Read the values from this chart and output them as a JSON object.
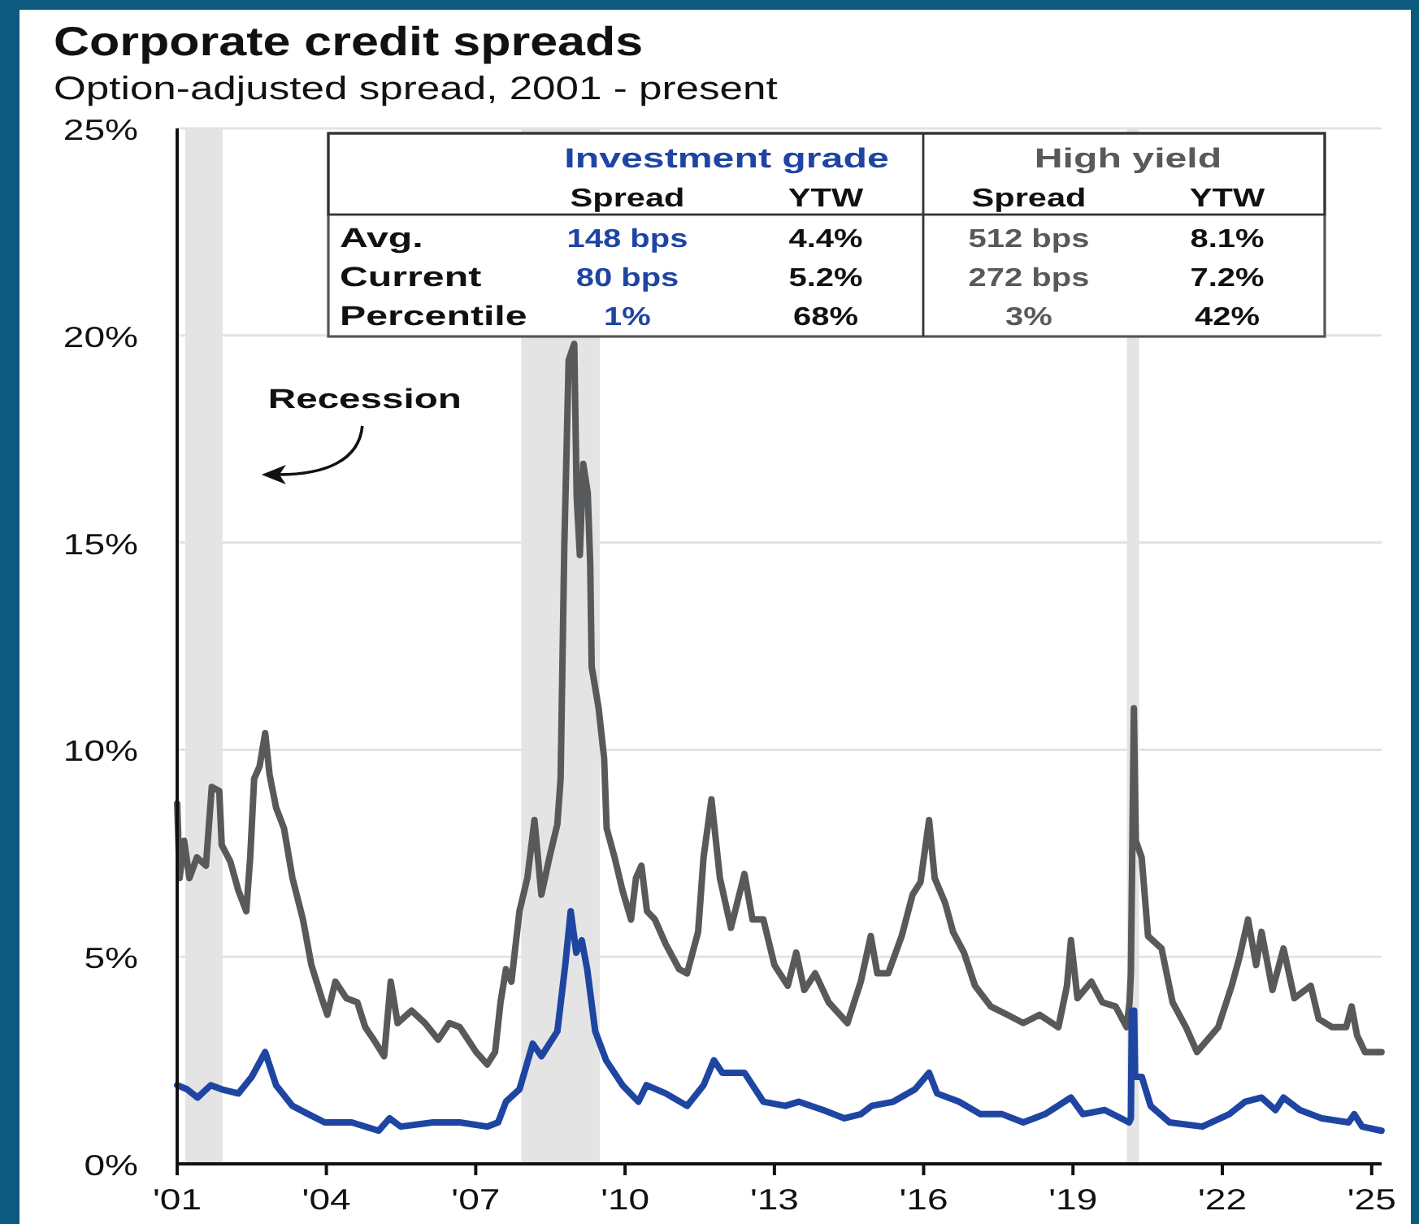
{
  "chart_data": {
    "type": "line",
    "title": "Corporate credit spreads",
    "subtitle": "Option-adjusted spread, 2001 - present",
    "xlim": [
      "2001-01-01",
      "2025-03-15"
    ],
    "xticks": [
      {
        "value": "2001-01-01",
        "label": "'01"
      },
      {
        "value": "2004-01-01",
        "label": "'04"
      },
      {
        "value": "2007-01-01",
        "label": "'07"
      },
      {
        "value": "2010-01-01",
        "label": "'10"
      },
      {
        "value": "2013-01-01",
        "label": "'13"
      },
      {
        "value": "2016-01-01",
        "label": "'16"
      },
      {
        "value": "2019-01-01",
        "label": "'19"
      },
      {
        "value": "2022-01-01",
        "label": "'22"
      },
      {
        "value": "2025-01-01",
        "label": "'25"
      }
    ],
    "ylim": [
      0,
      25
    ],
    "yticks": [
      {
        "value": 0,
        "label": "0%"
      },
      {
        "value": 5,
        "label": "5%"
      },
      {
        "value": 10,
        "label": "10%"
      },
      {
        "value": 15,
        "label": "15%"
      },
      {
        "value": 20,
        "label": "20%"
      },
      {
        "value": 25,
        "label": "25%"
      }
    ],
    "grid": "y",
    "series": [
      {
        "name": "Investment grade",
        "color": "#1f45a3",
        "x": [
          "2001-01-01",
          "2001-03-15",
          "2001-05-30",
          "2001-09-05",
          "2001-11-24",
          "2002-03-26",
          "2002-07-02",
          "2002-10-09",
          "2002-12-28",
          "2003-04-27",
          "2003-08-22",
          "2003-12-20",
          "2004-07-05",
          "2005-01-19",
          "2005-04-09",
          "2005-06-29",
          "2006-02-21",
          "2006-09-06",
          "2007-03-26",
          "2007-06-14",
          "2007-08-11",
          "2007-11-18",
          "2008-02-24",
          "2008-04-27",
          "2008-08-22",
          "2008-10-19",
          "2008-11-28",
          "2009-01-08",
          "2009-02-17",
          "2009-03-29",
          "2009-05-27",
          "2009-08-15",
          "2009-12-13",
          "2010-04-09",
          "2010-06-07",
          "2010-10-27",
          "2011-04-01",
          "2011-07-31",
          "2011-10-15",
          "2011-12-16",
          "2012-05-26",
          "2012-10-12",
          "2013-03-22",
          "2013-06-28",
          "2013-12-24",
          "2014-05-30",
          "2014-09-27",
          "2014-12-16",
          "2015-05-23",
          "2015-10-30",
          "2016-02-10",
          "2016-04-09",
          "2016-09-17",
          "2017-02-21",
          "2017-07-31",
          "2018-01-01",
          "2018-06-10",
          "2018-12-17",
          "2019-03-15",
          "2019-08-22",
          "2020-02-17",
          "2020-03-01",
          "2020-03-08",
          "2020-03-25",
          "2020-04-01",
          "2020-05-20",
          "2020-07-24",
          "2020-12-10",
          "2021-08-07",
          "2022-02-21",
          "2022-06-17",
          "2022-10-16",
          "2023-01-26",
          "2023-03-26",
          "2023-07-24",
          "2024-01-01",
          "2024-07-16",
          "2024-08-26",
          "2024-10-23",
          "2025-03-14"
        ],
        "values": [
          1.9,
          1.8,
          1.6,
          1.9,
          1.8,
          1.7,
          2.1,
          2.7,
          1.9,
          1.4,
          1.2,
          1.0,
          1.0,
          0.8,
          1.1,
          0.9,
          1.0,
          1.0,
          0.9,
          1.0,
          1.5,
          1.8,
          2.9,
          2.6,
          3.2,
          4.8,
          6.1,
          5.1,
          5.4,
          4.7,
          3.2,
          2.5,
          1.9,
          1.5,
          1.9,
          1.7,
          1.4,
          1.9,
          2.5,
          2.2,
          2.2,
          1.5,
          1.4,
          1.5,
          1.3,
          1.1,
          1.2,
          1.4,
          1.5,
          1.8,
          2.2,
          1.7,
          1.5,
          1.2,
          1.2,
          1.0,
          1.2,
          1.6,
          1.2,
          1.3,
          1.0,
          1.1,
          3.7,
          3.7,
          2.1,
          2.1,
          1.4,
          1.0,
          0.9,
          1.2,
          1.5,
          1.6,
          1.3,
          1.6,
          1.3,
          1.1,
          1.0,
          1.2,
          0.9,
          0.8
        ]
      },
      {
        "name": "High yield",
        "color": "#58595b",
        "x": [
          "2001-01-01",
          "2001-01-19",
          "2001-02-21",
          "2001-04-01",
          "2001-05-26",
          "2001-07-31",
          "2001-09-12",
          "2001-11-06",
          "2001-11-24",
          "2002-01-26",
          "2002-03-26",
          "2002-05-23",
          "2002-06-21",
          "2002-07-20",
          "2002-08-29",
          "2002-10-09",
          "2002-11-10",
          "2002-12-28",
          "2003-02-24",
          "2003-04-27",
          "2003-07-13",
          "2003-09-13",
          "2003-11-28",
          "2004-01-08",
          "2004-03-07",
          "2004-05-27",
          "2004-08-15",
          "2004-10-12",
          "2004-12-13",
          "2005-02-28",
          "2005-04-17",
          "2005-06-07",
          "2005-09-17",
          "2005-12-24",
          "2006-04-01",
          "2006-06-21",
          "2006-09-06",
          "2007-01-04",
          "2007-03-26",
          "2007-05-23",
          "2007-07-02",
          "2007-08-11",
          "2007-09-20",
          "2007-11-18",
          "2008-01-15",
          "2008-03-07",
          "2008-04-27",
          "2008-06-25",
          "2008-08-22",
          "2008-09-15",
          "2008-10-12",
          "2008-11-13",
          "2008-12-24",
          "2009-01-11",
          "2009-02-03",
          "2009-02-28",
          "2009-04-02",
          "2009-04-20",
          "2009-05-01",
          "2009-06-21",
          "2009-07-31",
          "2009-08-19",
          "2009-10-16",
          "2009-12-13",
          "2010-02-14",
          "2010-03-22",
          "2010-05-01",
          "2010-06-11",
          "2010-08-08",
          "2010-10-27",
          "2011-02-02",
          "2011-04-01",
          "2011-06-21",
          "2011-07-31",
          "2011-09-27",
          "2011-11-28",
          "2012-02-17",
          "2012-05-26",
          "2012-07-24",
          "2012-10-12",
          "2013-01-01",
          "2013-04-09",
          "2013-06-10",
          "2013-08-08",
          "2013-10-27",
          "2014-02-03",
          "2014-06-21",
          "2014-09-27",
          "2014-12-09",
          "2015-01-26",
          "2015-04-16",
          "2015-07-24",
          "2015-10-12",
          "2015-12-09",
          "2016-02-10",
          "2016-03-22",
          "2016-06-07",
          "2016-08-04",
          "2016-10-23",
          "2017-01-12",
          "2017-05-08",
          "2017-09-06",
          "2018-01-01",
          "2018-05-01",
          "2018-09-16",
          "2018-11-18",
          "2018-12-17",
          "2019-02-03",
          "2019-05-16",
          "2019-08-04",
          "2019-11-10",
          "2020-01-30",
          "2020-02-20",
          "2020-03-01",
          "2020-03-23",
          "2020-04-06",
          "2020-05-19",
          "2020-07-05",
          "2020-10-12",
          "2021-01-01",
          "2021-04-09",
          "2021-06-29",
          "2021-12-02",
          "2022-03-11",
          "2022-05-08",
          "2022-07-09",
          "2022-09-06",
          "2022-10-16",
          "2023-01-04",
          "2023-03-26",
          "2023-06-14",
          "2023-10-12",
          "2023-12-09",
          "2024-03-17",
          "2024-06-28",
          "2024-08-07",
          "2024-09-16",
          "2024-11-13",
          "2025-03-14"
        ],
        "values": [
          8.7,
          6.9,
          7.8,
          6.9,
          7.4,
          7.2,
          9.1,
          9.0,
          7.7,
          7.3,
          6.6,
          6.1,
          7.4,
          9.3,
          9.6,
          10.4,
          9.4,
          8.6,
          8.1,
          6.9,
          5.9,
          4.8,
          4.0,
          3.6,
          4.4,
          4.0,
          3.9,
          3.3,
          3.0,
          2.6,
          4.4,
          3.4,
          3.7,
          3.4,
          3.0,
          3.4,
          3.3,
          2.7,
          2.4,
          2.7,
          3.9,
          4.7,
          4.4,
          6.1,
          6.9,
          8.3,
          6.5,
          7.4,
          8.2,
          9.3,
          14.9,
          19.4,
          19.8,
          16.1,
          14.7,
          16.9,
          16.2,
          14.5,
          12.0,
          11.0,
          9.8,
          8.1,
          7.4,
          6.6,
          5.9,
          6.9,
          7.2,
          6.1,
          5.9,
          5.3,
          4.7,
          4.6,
          5.6,
          7.4,
          8.8,
          6.9,
          5.7,
          7.0,
          5.9,
          5.9,
          4.8,
          4.3,
          5.1,
          4.2,
          4.6,
          3.9,
          3.4,
          4.4,
          5.5,
          4.6,
          4.6,
          5.5,
          6.5,
          6.8,
          8.3,
          6.9,
          6.3,
          5.6,
          5.1,
          4.3,
          3.8,
          3.6,
          3.4,
          3.6,
          3.3,
          4.3,
          5.4,
          4.0,
          4.4,
          3.9,
          3.8,
          3.3,
          3.9,
          4.6,
          11.0,
          7.8,
          7.4,
          5.5,
          5.2,
          3.9,
          3.3,
          2.7,
          3.3,
          4.3,
          5.0,
          5.9,
          4.8,
          5.6,
          4.2,
          5.2,
          4.0,
          4.3,
          3.5,
          3.3,
          3.3,
          3.8,
          3.1,
          2.7,
          2.7
        ]
      }
    ],
    "bands": [
      {
        "axis": "x",
        "from": "2001-03-01",
        "to": "2001-11-30",
        "label": "Recession",
        "color": "#e4e4e4"
      },
      {
        "axis": "x",
        "from": "2007-12-01",
        "to": "2009-06-30",
        "color": "#e4e4e4"
      },
      {
        "axis": "x",
        "from": "2020-02-01",
        "to": "2020-04-30",
        "color": "#e4e4e4"
      }
    ],
    "annotations": [
      "Spread",
      "YTW",
      "Spread",
      "YTW",
      "Avg.",
      "148 bps",
      "4.4%",
      "512 bps",
      "8.1%",
      "Current",
      "80 bps",
      "5.2%",
      "272 bps",
      "7.2%",
      "Percentile",
      "1%",
      "68%",
      "3%",
      "42%"
    ]
  }
}
